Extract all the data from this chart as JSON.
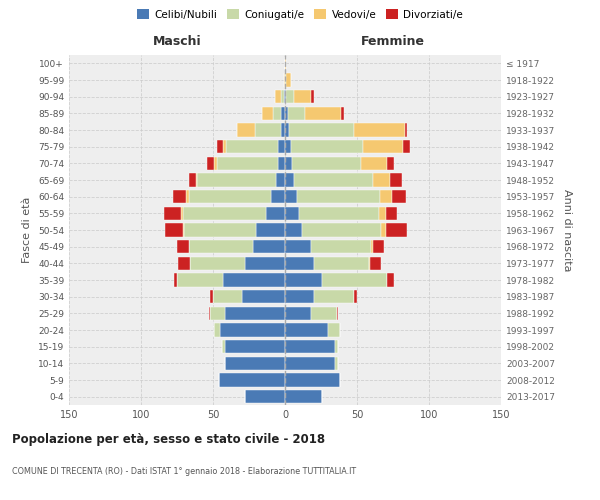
{
  "age_groups": [
    "0-4",
    "5-9",
    "10-14",
    "15-19",
    "20-24",
    "25-29",
    "30-34",
    "35-39",
    "40-44",
    "45-49",
    "50-54",
    "55-59",
    "60-64",
    "65-69",
    "70-74",
    "75-79",
    "80-84",
    "85-89",
    "90-94",
    "95-99",
    "100+"
  ],
  "birth_years": [
    "2013-2017",
    "2008-2012",
    "2003-2007",
    "1998-2002",
    "1993-1997",
    "1988-1992",
    "1983-1987",
    "1978-1982",
    "1973-1977",
    "1968-1972",
    "1963-1967",
    "1958-1962",
    "1953-1957",
    "1948-1952",
    "1943-1947",
    "1938-1942",
    "1933-1937",
    "1928-1932",
    "1923-1927",
    "1918-1922",
    "≤ 1917"
  ],
  "male_celibe": [
    28,
    46,
    42,
    42,
    45,
    42,
    30,
    43,
    28,
    22,
    20,
    13,
    10,
    6,
    5,
    5,
    3,
    3,
    1,
    0,
    0
  ],
  "male_coniugato": [
    0,
    0,
    0,
    2,
    4,
    10,
    20,
    32,
    38,
    45,
    50,
    58,
    57,
    55,
    42,
    36,
    18,
    5,
    2,
    0,
    0
  ],
  "male_vedovo": [
    0,
    0,
    0,
    0,
    0,
    0,
    0,
    0,
    0,
    0,
    1,
    1,
    2,
    1,
    2,
    2,
    12,
    8,
    4,
    1,
    0
  ],
  "male_divorziato": [
    0,
    0,
    0,
    0,
    0,
    1,
    2,
    2,
    8,
    8,
    12,
    12,
    9,
    5,
    5,
    4,
    0,
    0,
    0,
    0,
    0
  ],
  "female_celibe": [
    26,
    38,
    35,
    35,
    30,
    18,
    20,
    26,
    20,
    18,
    12,
    10,
    8,
    6,
    5,
    4,
    3,
    2,
    1,
    0,
    0
  ],
  "female_coniugato": [
    0,
    0,
    2,
    2,
    8,
    18,
    28,
    45,
    38,
    42,
    55,
    55,
    58,
    55,
    48,
    50,
    45,
    12,
    5,
    1,
    0
  ],
  "female_vedovo": [
    0,
    0,
    0,
    0,
    0,
    0,
    0,
    0,
    1,
    1,
    3,
    5,
    8,
    12,
    18,
    28,
    35,
    25,
    12,
    3,
    1
  ],
  "female_divorziato": [
    0,
    0,
    0,
    0,
    0,
    1,
    2,
    5,
    8,
    8,
    15,
    8,
    10,
    8,
    5,
    5,
    2,
    2,
    2,
    0,
    0
  ],
  "color_celibe": "#4a7ab5",
  "color_coniugato": "#c8d9a8",
  "color_vedovo": "#f5c870",
  "color_divorziato": "#cc2222",
  "title": "Popolazione per età, sesso e stato civile - 2018",
  "subtitle": "COMUNE DI TRECENTA (RO) - Dati ISTAT 1° gennaio 2018 - Elaborazione TUTTITALIA.IT",
  "xlabel_left": "Maschi",
  "xlabel_right": "Femmine",
  "ylabel_left": "Fasce di età",
  "ylabel_right": "Anni di nascita",
  "xlim": 150,
  "bg_color": "#eeeeee",
  "grid_color": "#cccccc"
}
